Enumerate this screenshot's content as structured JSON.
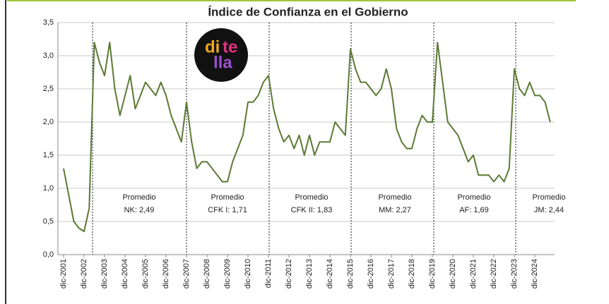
{
  "chart_data": {
    "type": "line",
    "title": "Índice de Confianza en el Gobierno",
    "categories": [
      "dic-2001",
      null,
      null,
      null,
      "dic-2002",
      null,
      null,
      null,
      "dic-2003",
      null,
      null,
      null,
      "dic-2004",
      null,
      null,
      null,
      "dic-2005",
      null,
      null,
      null,
      "dic-2006",
      null,
      null,
      null,
      "dic-2007",
      null,
      null,
      null,
      "dic-2008",
      null,
      null,
      null,
      "dic-2009",
      null,
      null,
      null,
      "dic-2010",
      null,
      null,
      null,
      "dic-2011",
      null,
      null,
      null,
      "dic-2012",
      null,
      null,
      null,
      "dic-2013",
      null,
      null,
      null,
      "dic-2014",
      null,
      null,
      null,
      "dic-2015",
      null,
      null,
      null,
      "dic-2016",
      null,
      null,
      null,
      "dic-2017",
      null,
      null,
      null,
      "dic-2018",
      null,
      null,
      null,
      "dic-2019",
      null,
      null,
      null,
      "dic-2020",
      null,
      null,
      null,
      "dic-2021",
      null,
      null,
      null,
      "dic-2022",
      null,
      null,
      null,
      "dic-2023",
      null,
      null,
      null,
      "dic-2024",
      null,
      null,
      null
    ],
    "values": [
      1.3,
      0.9,
      0.5,
      0.4,
      0.35,
      0.7,
      3.2,
      2.9,
      2.7,
      3.2,
      2.5,
      2.1,
      2.4,
      2.7,
      2.2,
      2.4,
      2.6,
      2.5,
      2.4,
      2.6,
      2.4,
      2.1,
      1.9,
      1.7,
      2.3,
      1.7,
      1.3,
      1.4,
      1.4,
      1.3,
      1.2,
      1.1,
      1.1,
      1.4,
      1.6,
      1.8,
      2.3,
      2.3,
      2.4,
      2.6,
      2.7,
      2.2,
      1.9,
      1.7,
      1.8,
      1.6,
      1.8,
      1.5,
      1.8,
      1.5,
      1.7,
      1.7,
      1.7,
      2.0,
      1.9,
      1.8,
      3.1,
      2.8,
      2.6,
      2.6,
      2.5,
      2.4,
      2.5,
      2.8,
      2.5,
      1.9,
      1.7,
      1.6,
      1.6,
      1.9,
      2.1,
      2.0,
      2.0,
      3.2,
      2.6,
      2.0,
      1.9,
      1.8,
      1.6,
      1.4,
      1.5,
      1.2,
      1.2,
      1.2,
      1.1,
      1.2,
      1.1,
      1.3,
      2.8,
      2.5,
      2.4,
      2.6,
      2.4,
      2.4,
      2.3,
      2.0
    ],
    "color": "#5b7a34",
    "ylim": [
      0,
      3.5
    ],
    "yticks": [
      {
        "value": 0,
        "label": "0,0"
      },
      {
        "value": 0.5,
        "label": "0,5"
      },
      {
        "value": 1,
        "label": "1,0"
      },
      {
        "value": 1.5,
        "label": "1,5"
      },
      {
        "value": 2,
        "label": "2,0"
      },
      {
        "value": 2.5,
        "label": "2,5"
      },
      {
        "value": 3,
        "label": "3,0"
      },
      {
        "value": 3.5,
        "label": "3,5"
      }
    ],
    "grid": true,
    "annotations": [
      [
        "Promedio",
        "NK: 2,49"
      ],
      [
        "Promedio",
        "CFK I: 1,71"
      ],
      [
        "Promedio",
        "CFK II: 1,83"
      ],
      [
        "Promedio",
        "MM: 2,27"
      ],
      [
        "Promedio",
        "AF: 1,69"
      ],
      [
        "Promedio",
        "JM: 2,44"
      ]
    ],
    "logo": [
      "di",
      "te",
      "lla"
    ]
  }
}
